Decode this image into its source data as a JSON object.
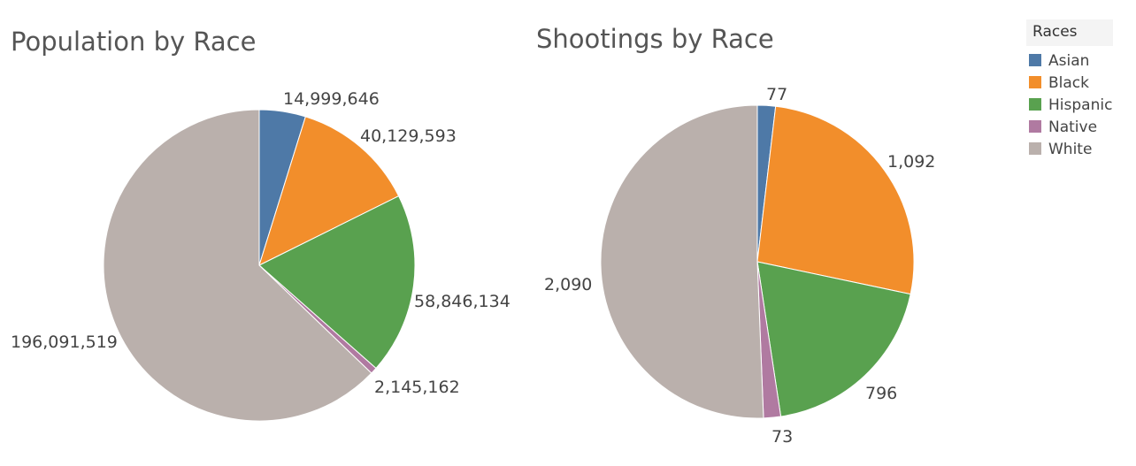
{
  "legend": {
    "title": "Races",
    "items": [
      {
        "label": "Asian",
        "color": "#4e79a7"
      },
      {
        "label": "Black",
        "color": "#f28e2b"
      },
      {
        "label": "Hispanic",
        "color": "#59a14f"
      },
      {
        "label": "Native",
        "color": "#b07aa1"
      },
      {
        "label": "White",
        "color": "#bab0ac"
      }
    ]
  },
  "chart_data": [
    {
      "type": "pie",
      "title": "Population by Race",
      "categories": [
        "Asian",
        "Black",
        "Hispanic",
        "Native",
        "White"
      ],
      "values": [
        14999646,
        40129593,
        58846134,
        2145162,
        196091519
      ],
      "value_labels": [
        "14,999,646",
        "40,129,593",
        "58,846,134",
        "2,145,162",
        "196,091,519"
      ],
      "colors": [
        "#4e79a7",
        "#f28e2b",
        "#59a14f",
        "#b07aa1",
        "#bab0ac"
      ],
      "start_angle": "top",
      "direction": "clockwise"
    },
    {
      "type": "pie",
      "title": "Shootings by Race",
      "categories": [
        "Asian",
        "Black",
        "Hispanic",
        "Native",
        "White"
      ],
      "values": [
        77,
        1092,
        796,
        73,
        2090
      ],
      "value_labels": [
        "77",
        "1,092",
        "796",
        "73",
        "2,090"
      ],
      "colors": [
        "#4e79a7",
        "#f28e2b",
        "#59a14f",
        "#b07aa1",
        "#bab0ac"
      ],
      "start_angle": "top",
      "direction": "clockwise"
    }
  ]
}
